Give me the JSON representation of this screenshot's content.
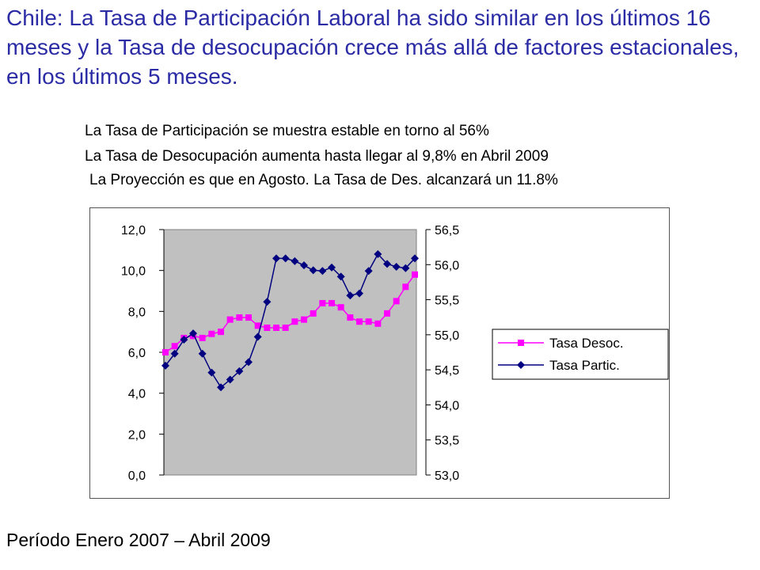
{
  "headline": "Chile: La Tasa de Participación Laboral ha sido similar en los últimos 16 meses y la Tasa de desocupación crece más allá de factores estacionales, en los últimos 5 meses.",
  "bullets": [
    "La Tasa de Participación se muestra estable en torno al  56%",
    "La Tasa de Desocupación aumenta hasta llegar al 9,8% en Abril 2009",
    "La Proyección es que en Agosto. La Tasa de Des. alcanzará un 11.8%"
  ],
  "footer": "Período Enero 2007 – Abril 2009",
  "chart_data": {
    "type": "line",
    "plot_background": "#C0C0C0",
    "y_left": {
      "ylim": [
        0,
        12
      ],
      "ticks": [
        "0,0",
        "2,0",
        "4,0",
        "6,0",
        "8,0",
        "10,0",
        "12,0"
      ]
    },
    "y_right": {
      "ylim": [
        53.0,
        56.5
      ],
      "ticks": [
        "53,0",
        "53,5",
        "54,0",
        "54,5",
        "55,0",
        "55,5",
        "56,0",
        "56,5"
      ]
    },
    "legend_position": "right",
    "series": [
      {
        "name": "Tasa Desoc.",
        "axis": "left",
        "color": "#FF00FF",
        "marker": "square",
        "values": [
          6.0,
          6.3,
          6.7,
          6.8,
          6.7,
          6.9,
          7.0,
          7.6,
          7.7,
          7.7,
          7.3,
          7.2,
          7.2,
          7.2,
          7.5,
          7.6,
          7.9,
          8.4,
          8.4,
          8.2,
          7.7,
          7.5,
          7.5,
          7.4,
          7.9,
          8.5,
          9.2,
          9.8
        ]
      },
      {
        "name": "Tasa Partic.",
        "axis": "right",
        "color": "#000080",
        "marker": "diamond",
        "values": [
          54.56,
          54.73,
          54.93,
          55.02,
          54.73,
          54.46,
          54.25,
          54.36,
          54.48,
          54.61,
          54.97,
          55.47,
          56.09,
          56.09,
          56.05,
          55.99,
          55.92,
          55.91,
          55.96,
          55.83,
          55.56,
          55.59,
          55.91,
          56.15,
          56.01,
          55.97,
          55.95,
          56.09
        ]
      }
    ]
  }
}
